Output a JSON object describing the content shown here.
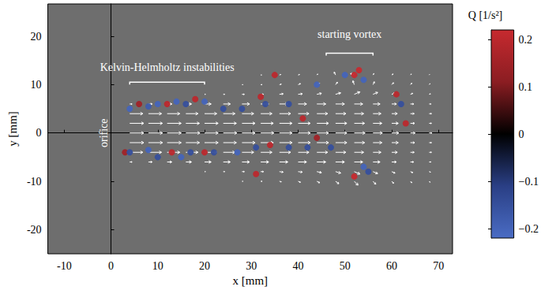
{
  "chart_data": {
    "type": "vector_field",
    "xlabel": "x [mm]",
    "ylabel": "y [mm]",
    "xlim": [
      -13.5,
      73
    ],
    "ylim": [
      -25,
      26.7
    ],
    "xticks": [
      -10,
      0,
      10,
      20,
      30,
      40,
      50,
      60,
      70
    ],
    "yticks": [
      -20,
      -10,
      0,
      10,
      20
    ],
    "grid": false,
    "color": "#ffffff",
    "vectors": {
      "x": [
        4,
        8,
        12,
        16,
        20,
        24,
        28,
        32,
        36,
        40,
        44,
        48,
        52,
        56,
        60,
        64,
        68
      ],
      "y": [
        -10,
        -8,
        -6,
        -4,
        -2,
        0,
        2,
        4,
        6,
        8,
        10,
        12
      ],
      "u": [
        [
          0,
          0,
          0,
          0,
          0,
          0,
          0.2,
          0.3,
          0.4,
          0.5,
          0.6,
          0.7,
          0.8,
          0.6,
          0.4,
          0.3,
          0.2
        ],
        [
          0,
          0,
          0,
          0,
          0.2,
          0.3,
          0.5,
          0.6,
          0.8,
          0.9,
          1.0,
          1.1,
          1.2,
          1.0,
          0.7,
          0.5,
          0.3
        ],
        [
          0.5,
          0.8,
          1.0,
          1.2,
          1.4,
          1.5,
          1.6,
          1.7,
          1.8,
          1.8,
          1.9,
          1.9,
          1.8,
          1.5,
          1.0,
          0.7,
          0.4
        ],
        [
          2.8,
          2.8,
          2.7,
          2.6,
          2.6,
          2.5,
          2.5,
          2.4,
          2.4,
          2.3,
          2.3,
          2.2,
          2.0,
          1.7,
          1.2,
          0.8,
          0.5
        ],
        [
          3.0,
          3.0,
          3.0,
          2.9,
          2.9,
          2.8,
          2.8,
          2.7,
          2.7,
          2.6,
          2.5,
          2.4,
          2.2,
          1.9,
          1.4,
          0.9,
          0.5
        ],
        [
          3.0,
          3.0,
          3.0,
          3.0,
          2.9,
          2.9,
          2.8,
          2.8,
          2.7,
          2.6,
          2.5,
          2.4,
          2.3,
          2.0,
          1.5,
          1.0,
          0.6
        ],
        [
          3.0,
          3.0,
          3.0,
          2.9,
          2.9,
          2.8,
          2.8,
          2.7,
          2.7,
          2.6,
          2.5,
          2.4,
          2.2,
          1.9,
          1.4,
          0.9,
          0.5
        ],
        [
          2.8,
          2.8,
          2.7,
          2.6,
          2.6,
          2.5,
          2.5,
          2.4,
          2.4,
          2.3,
          2.3,
          2.2,
          2.0,
          1.7,
          1.2,
          0.8,
          0.5
        ],
        [
          0.5,
          0.8,
          1.0,
          1.2,
          1.4,
          1.5,
          1.6,
          1.7,
          1.8,
          1.8,
          1.9,
          1.9,
          1.8,
          1.5,
          1.0,
          0.7,
          0.4
        ],
        [
          0,
          0,
          0,
          0,
          0.2,
          0.3,
          0.5,
          0.6,
          0.8,
          0.9,
          1.0,
          1.1,
          1.2,
          1.0,
          0.7,
          0.5,
          0.3
        ],
        [
          0,
          0,
          0,
          0,
          0,
          0,
          0.2,
          0.3,
          0.4,
          0.5,
          0.6,
          0.4,
          -0.3,
          0.3,
          0.4,
          0.3,
          0.2
        ],
        [
          0,
          0,
          0,
          0,
          0,
          0,
          0,
          0.2,
          0.3,
          0.3,
          0.2,
          -0.3,
          -0.8,
          0.2,
          0.3,
          0.2,
          0.1
        ]
      ],
      "v": [
        [
          0,
          0,
          0,
          0,
          0,
          0,
          0,
          0,
          -0.1,
          -0.2,
          -0.3,
          -0.5,
          -0.8,
          -0.6,
          -0.4,
          -0.3,
          -0.2
        ],
        [
          0,
          0,
          0,
          0,
          0,
          0,
          0,
          0,
          -0.1,
          -0.1,
          -0.2,
          -0.3,
          -0.5,
          -0.4,
          -0.3,
          -0.2,
          -0.1
        ],
        [
          0,
          0,
          0,
          0,
          0,
          0,
          0,
          0,
          0,
          0,
          0,
          0,
          0,
          0,
          0,
          0,
          0
        ],
        [
          0,
          0,
          0,
          0,
          0,
          0,
          0,
          0,
          0,
          0,
          0,
          0,
          0,
          0,
          0,
          0,
          0
        ],
        [
          0,
          0,
          0,
          0,
          0,
          0,
          0,
          0,
          0,
          0,
          0,
          0,
          0,
          0,
          0,
          0,
          0
        ],
        [
          0,
          0,
          0,
          0,
          0,
          0,
          0,
          0,
          0,
          0,
          0,
          0,
          0,
          0,
          0,
          0,
          0
        ],
        [
          0,
          0,
          0,
          0,
          0,
          0,
          0,
          0,
          0,
          0,
          0,
          0,
          0,
          0,
          0,
          0,
          0
        ],
        [
          0,
          0,
          0,
          0,
          0,
          0,
          0,
          0,
          0,
          0,
          0,
          0,
          0,
          0,
          0,
          0,
          0
        ],
        [
          0,
          0,
          0,
          0,
          0,
          0,
          0,
          0,
          0,
          0,
          0,
          0,
          0,
          0,
          0,
          0,
          0
        ],
        [
          0,
          0,
          0,
          0,
          0,
          0,
          0,
          0,
          0.1,
          0.1,
          0.2,
          0.3,
          0.5,
          0.4,
          0.3,
          0.2,
          0.1
        ],
        [
          0,
          0,
          0,
          0,
          0,
          0,
          0,
          0,
          0.1,
          0.2,
          0.3,
          0.5,
          0.8,
          0.6,
          0.4,
          0.3,
          0.2
        ],
        [
          0,
          0,
          0,
          0,
          0,
          0,
          0,
          0,
          0.1,
          0.1,
          0.2,
          0.6,
          0.3,
          0.3,
          0.2,
          0.2,
          0.1
        ]
      ]
    },
    "q_points": {
      "x": [
        3,
        4,
        6,
        8,
        10,
        12,
        14,
        16,
        18,
        20,
        24,
        28,
        32,
        33,
        35,
        38,
        41,
        44,
        50,
        52,
        53,
        54,
        61,
        62,
        63,
        4,
        8,
        10,
        13,
        15,
        17,
        20,
        22,
        27,
        31,
        31,
        34,
        38,
        42,
        44,
        47,
        52,
        54,
        55
      ],
      "y": [
        -4,
        5,
        6,
        5.5,
        6,
        6,
        6.5,
        6,
        7,
        6.5,
        5,
        5,
        7.5,
        6,
        12,
        6,
        3,
        10,
        12,
        12,
        13,
        11,
        8,
        6,
        2,
        -4,
        -3.5,
        -5,
        -4,
        -5,
        -4,
        -4,
        -4,
        -4,
        -3,
        -8.5,
        -2.5,
        -3,
        -3,
        -1,
        -3,
        -9,
        -7,
        -8
      ],
      "q": [
        0.15,
        -0.2,
        0.15,
        -0.18,
        -0.2,
        0.2,
        -0.2,
        -0.15,
        0.2,
        -0.2,
        -0.15,
        -0.15,
        0.2,
        -0.15,
        0.2,
        -0.15,
        0.2,
        -0.2,
        -0.2,
        0.22,
        0.22,
        -0.2,
        0.2,
        -0.15,
        0.2,
        -0.15,
        -0.2,
        -0.15,
        0.2,
        -0.2,
        -0.15,
        0.2,
        -0.15,
        -0.2,
        -0.15,
        0.2,
        0.2,
        -0.15,
        -0.15,
        0.15,
        -0.15,
        0.22,
        -0.2,
        -0.15
      ]
    },
    "colorbar": {
      "label": "Q [1/s²]",
      "lim": [
        -0.22,
        0.22
      ],
      "ticks": [
        {
          "value": -0.2,
          "label": "−0.2"
        },
        {
          "value": -0.1,
          "label": "−0.1"
        },
        0,
        0.1,
        0.2
      ],
      "colors": [
        "#4a6cc4",
        "#2a3f85",
        "#000000",
        "#8b1d22",
        "#c62a2f"
      ]
    },
    "annotations": [
      {
        "text": "orifice",
        "x": -1.5,
        "y": 0
      },
      {
        "text": "Kelvin-Helmholtz instabilities",
        "x": 12,
        "y": 13.5,
        "x_span": [
          4,
          20
        ],
        "bracket_y": 10.5
      },
      {
        "text": "starting vortex",
        "x": 51,
        "y": 20.5,
        "x_span": [
          46,
          56
        ],
        "bracket_y": 16.5
      }
    ]
  }
}
